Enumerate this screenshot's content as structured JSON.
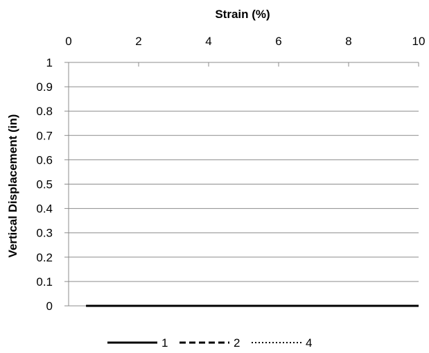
{
  "chart_data": {
    "type": "line",
    "xlabel": "Strain (%)",
    "ylabel": "Vertical Displacement (in)",
    "x_axis_position": "top",
    "xlim": [
      0,
      10
    ],
    "ylim": [
      0,
      1
    ],
    "xticks": [
      "0",
      "2",
      "4",
      "6",
      "8",
      "10"
    ],
    "yticks": [
      "0",
      "0.1",
      "0.2",
      "0.3",
      "0.4",
      "0.5",
      "0.6",
      "0.7",
      "0.8",
      "0.9",
      "1"
    ],
    "grid": "horizontal",
    "legend_position": "bottom",
    "series": [
      {
        "name": "1",
        "style": "solid",
        "color": "#000000",
        "x": [
          0.5,
          10
        ],
        "y": [
          0,
          0
        ]
      },
      {
        "name": "2",
        "style": "dashed",
        "color": "#000000",
        "x": [
          0.5,
          10
        ],
        "y": [
          0,
          0
        ]
      },
      {
        "name": "4",
        "style": "dotted",
        "color": "#000000",
        "x": [
          0.5,
          10
        ],
        "y": [
          0,
          0
        ]
      }
    ]
  }
}
